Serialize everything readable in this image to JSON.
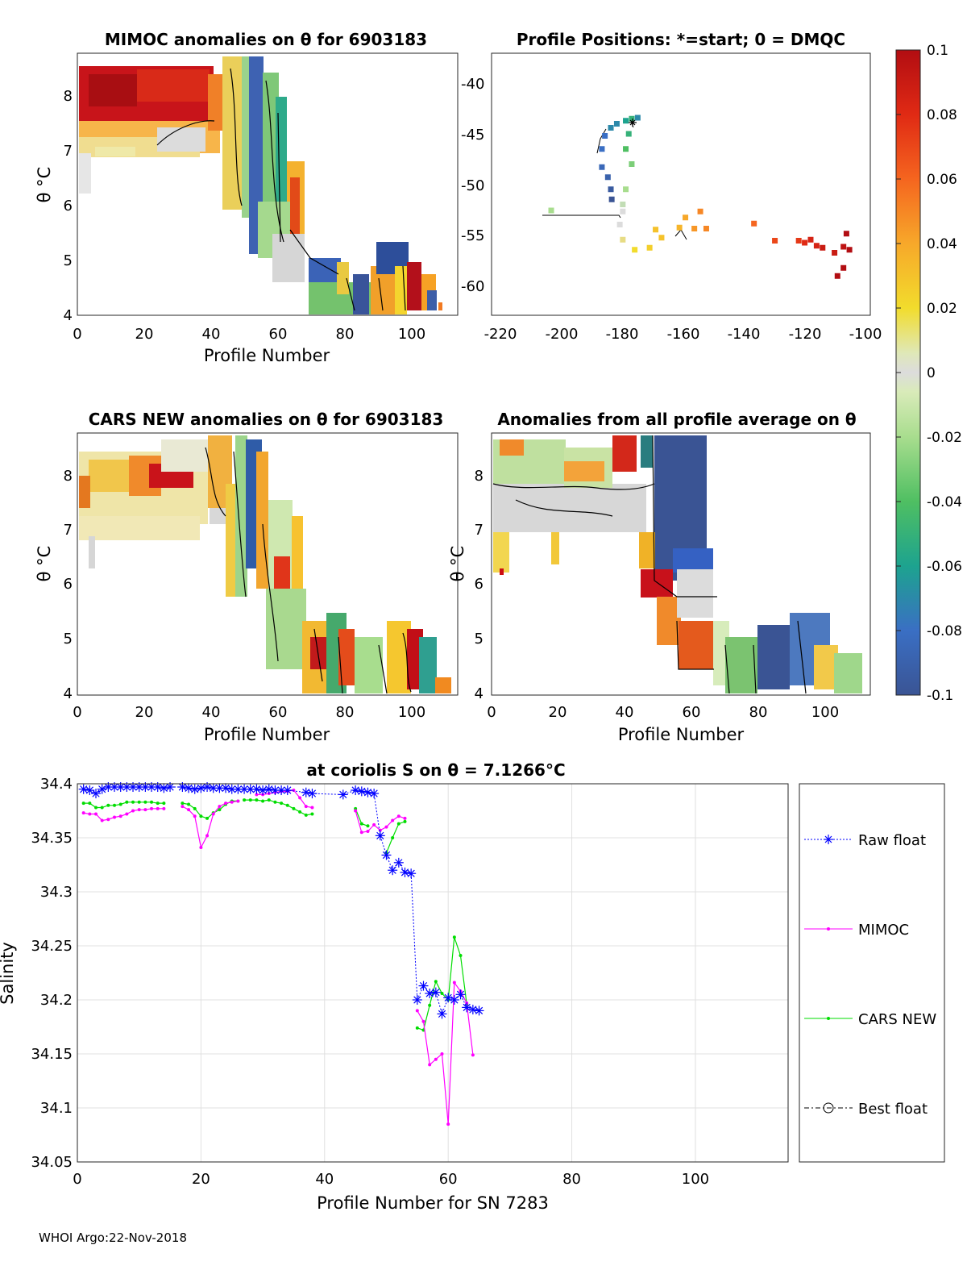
{
  "footer": "WHOI Argo:22-Nov-2018",
  "colors": {
    "raw": "#0000ff",
    "mimoc": "#ff00ff",
    "cars": "#00dd00",
    "best": "#000000"
  },
  "colorbar": {
    "ticks": [
      "0.1",
      "0.08",
      "0.06",
      "0.04",
      "0.02",
      "0",
      "-0.02",
      "-0.04",
      "-0.06",
      "-0.08",
      "-0.1"
    ],
    "range": [
      -0.1,
      0.1
    ]
  },
  "chart_data": [
    {
      "type": "heatmap",
      "title": "MIMOC anomalies on θ  for 6903183",
      "xlabel": "Profile Number",
      "ylabel": "θ °C",
      "xlim": [
        0,
        113
      ],
      "ylim": [
        4,
        8.8
      ],
      "xticks": [
        0,
        20,
        40,
        60,
        80,
        100
      ],
      "yticks": [
        4,
        5,
        6,
        7,
        8
      ]
    },
    {
      "type": "scatter",
      "title": "Profile Positions: *=start; 0 = DMQC",
      "xlim": [
        -225,
        -98
      ],
      "ylim": [
        -63.5,
        -37.5
      ],
      "xticks": [
        -220,
        -200,
        -180,
        -160,
        -140,
        -120,
        -100
      ],
      "yticks": [
        -40,
        -45,
        -50,
        -55,
        -60
      ],
      "points": [
        {
          "lon": -176,
          "lat": -43.9,
          "v": -0.07
        },
        {
          "lon": -178,
          "lat": -44.0,
          "v": -0.05
        },
        {
          "lon": -180,
          "lat": -44.2,
          "v": -0.06
        },
        {
          "lon": -183,
          "lat": -44.5,
          "v": -0.07
        },
        {
          "lon": -185,
          "lat": -44.9,
          "v": -0.07
        },
        {
          "lon": -187,
          "lat": -45.7,
          "v": -0.08
        },
        {
          "lon": -188,
          "lat": -47.0,
          "v": -0.08
        },
        {
          "lon": -188,
          "lat": -48.8,
          "v": -0.085
        },
        {
          "lon": -186,
          "lat": -49.8,
          "v": -0.09
        },
        {
          "lon": -185,
          "lat": -51.0,
          "v": -0.095
        },
        {
          "lon": -184.7,
          "lat": -52.0,
          "v": -0.1
        },
        {
          "lon": -179,
          "lat": -45.5,
          "v": -0.05
        },
        {
          "lon": -180,
          "lat": -47.0,
          "v": -0.04
        },
        {
          "lon": -178,
          "lat": -48.5,
          "v": -0.03
        },
        {
          "lon": -180,
          "lat": -51.0,
          "v": -0.02
        },
        {
          "lon": -181,
          "lat": -52.5,
          "v": -0.01
        },
        {
          "lon": -181,
          "lat": -53.2,
          "v": 0.0
        },
        {
          "lon": -205,
          "lat": -53.1,
          "v": -0.02
        },
        {
          "lon": -182,
          "lat": -54.5,
          "v": 0.0
        },
        {
          "lon": -181,
          "lat": -56.0,
          "v": 0.01
        },
        {
          "lon": -177,
          "lat": -57.0,
          "v": 0.02
        },
        {
          "lon": -172,
          "lat": -56.8,
          "v": 0.025
        },
        {
          "lon": -170,
          "lat": -55.0,
          "v": 0.03
        },
        {
          "lon": -168,
          "lat": -55.8,
          "v": 0.03
        },
        {
          "lon": -162,
          "lat": -54.8,
          "v": 0.035
        },
        {
          "lon": -160,
          "lat": -53.8,
          "v": 0.04
        },
        {
          "lon": -157,
          "lat": -54.9,
          "v": 0.045
        },
        {
          "lon": -155,
          "lat": -53.2,
          "v": 0.05
        },
        {
          "lon": -153,
          "lat": -54.9,
          "v": 0.05
        },
        {
          "lon": -137,
          "lat": -54.4,
          "v": 0.06
        },
        {
          "lon": -130,
          "lat": -56.1,
          "v": 0.07
        },
        {
          "lon": -122,
          "lat": -56.1,
          "v": 0.075
        },
        {
          "lon": -120,
          "lat": -56.3,
          "v": 0.08
        },
        {
          "lon": -118,
          "lat": -56.0,
          "v": 0.085
        },
        {
          "lon": -116,
          "lat": -56.6,
          "v": 0.085
        },
        {
          "lon": -114,
          "lat": -56.8,
          "v": 0.09
        },
        {
          "lon": -110,
          "lat": -57.3,
          "v": 0.09
        },
        {
          "lon": -107,
          "lat": -56.7,
          "v": 0.095
        },
        {
          "lon": -105,
          "lat": -57.0,
          "v": 0.1
        },
        {
          "lon": -106,
          "lat": -55.4,
          "v": 0.1
        },
        {
          "lon": -107,
          "lat": -58.8,
          "v": 0.1
        },
        {
          "lon": -109,
          "lat": -59.6,
          "v": 0.1
        }
      ]
    },
    {
      "type": "heatmap",
      "title": "CARS NEW anomalies on θ for 6903183",
      "xlabel": "Profile Number",
      "ylabel": "θ °C",
      "xlim": [
        0,
        113
      ],
      "ylim": [
        4,
        8.8
      ],
      "xticks": [
        0,
        20,
        40,
        60,
        80,
        100
      ],
      "yticks": [
        4,
        5,
        6,
        7,
        8
      ]
    },
    {
      "type": "heatmap",
      "title": "Anomalies from all profile average on θ",
      "xlabel": "Profile Number",
      "ylabel": "θ °C",
      "xlim": [
        0,
        113
      ],
      "ylim": [
        4,
        8.8
      ],
      "xticks": [
        0,
        20,
        40,
        60,
        80,
        100
      ],
      "yticks": [
        4,
        5,
        6,
        7,
        8
      ]
    },
    {
      "type": "line",
      "title": "at coriolis S on θ = 7.1266°C",
      "xlabel": "Profile Number for SN 7283",
      "ylabel": "Salinity",
      "xlim": [
        0,
        115
      ],
      "ylim": [
        34.05,
        34.4
      ],
      "xticks": [
        0,
        20,
        40,
        60,
        80,
        100
      ],
      "yticks": [
        34.05,
        34.1,
        34.15,
        34.2,
        34.25,
        34.3,
        34.35,
        34.4
      ],
      "ytick_labels": [
        "34.05",
        "34.1",
        "34.15",
        "34.2",
        "34.25",
        "34.3",
        "34.35",
        "34.4"
      ],
      "legend": [
        "Raw float",
        "MIMOC",
        "CARS NEW",
        "Best float"
      ],
      "series": [
        {
          "name": "Raw float",
          "x": [
            1,
            2,
            3,
            4,
            5,
            6,
            7,
            8,
            9,
            10,
            11,
            12,
            13,
            14,
            15,
            17,
            18,
            19,
            20,
            21,
            22,
            23,
            24,
            25,
            26,
            27,
            28,
            29,
            30,
            31,
            32,
            33,
            34,
            37,
            38,
            43,
            45,
            46,
            47,
            48,
            49,
            50,
            51,
            52,
            53,
            54,
            55,
            56,
            57,
            58,
            59,
            60,
            61,
            62,
            63,
            64,
            65
          ],
          "y": [
            34.395,
            34.394,
            34.391,
            34.395,
            34.397,
            34.397,
            34.397,
            34.397,
            34.397,
            34.397,
            34.397,
            34.397,
            34.397,
            34.396,
            34.397,
            34.397,
            34.396,
            34.395,
            34.396,
            34.397,
            34.396,
            34.396,
            34.396,
            34.395,
            34.395,
            34.395,
            34.395,
            34.395,
            34.394,
            34.395,
            34.394,
            34.394,
            34.394,
            34.392,
            34.391,
            34.39,
            34.394,
            34.393,
            34.392,
            34.391,
            34.352,
            34.334,
            34.32,
            34.327,
            34.318,
            34.317,
            34.2,
            34.213,
            34.206,
            34.207,
            34.187,
            34.202,
            34.2,
            34.205,
            34.193,
            34.191,
            34.19
          ]
        },
        {
          "name": "MIMOC",
          "segments": [
            {
              "x": [
                1,
                2,
                3,
                4,
                5,
                6,
                7,
                8,
                9,
                10,
                11,
                12,
                13,
                14
              ],
              "y": [
                34.373,
                34.372,
                34.372,
                34.366,
                34.367,
                34.369,
                34.37,
                34.372,
                34.375,
                34.376,
                34.376,
                34.377,
                34.377,
                34.377
              ]
            },
            {
              "x": [
                17,
                18,
                19,
                20,
                21,
                22,
                23,
                24,
                25,
                26
              ],
              "y": [
                34.379,
                34.376,
                34.37,
                34.341,
                34.352,
                34.372,
                34.379,
                34.382,
                34.383,
                34.384
              ]
            },
            {
              "x": [
                29,
                30,
                31,
                32,
                33,
                34,
                35,
                36,
                37,
                38
              ],
              "y": [
                34.39,
                34.39,
                34.391,
                34.392,
                34.393,
                34.393,
                34.394,
                34.387,
                34.379,
                34.378
              ]
            },
            {
              "x": [
                45,
                46,
                47,
                48,
                49,
                50,
                51,
                52,
                53
              ],
              "y": [
                34.375,
                34.355,
                34.356,
                34.362,
                34.357,
                34.36,
                34.366,
                34.37,
                34.368
              ]
            },
            {
              "x": [
                55,
                56,
                57,
                58,
                59,
                60,
                61,
                62,
                63,
                64
              ],
              "y": [
                34.19,
                34.18,
                34.14,
                34.145,
                34.15,
                34.085,
                34.216,
                34.208,
                34.197,
                34.149
              ]
            }
          ]
        },
        {
          "name": "CARS NEW",
          "segments": [
            {
              "x": [
                1,
                2,
                3,
                4,
                5,
                6,
                7,
                8,
                9,
                10,
                11,
                12,
                13,
                14
              ],
              "y": [
                34.382,
                34.382,
                34.378,
                34.378,
                34.38,
                34.38,
                34.381,
                34.383,
                34.383,
                34.383,
                34.383,
                34.383,
                34.382,
                34.382
              ]
            },
            {
              "x": [
                17,
                18,
                19,
                20,
                21,
                22,
                23,
                24,
                25,
                26
              ],
              "y": [
                34.382,
                34.381,
                34.377,
                34.37,
                34.368,
                34.373,
                34.376,
                34.381,
                34.384,
                34.384
              ]
            },
            {
              "x": [
                27,
                28,
                29,
                30,
                31,
                32,
                33,
                34,
                35,
                36,
                37,
                38
              ],
              "y": [
                34.385,
                34.385,
                34.385,
                34.384,
                34.385,
                34.383,
                34.382,
                34.38,
                34.377,
                34.374,
                34.371,
                34.372
              ]
            },
            {
              "x": [
                45,
                46,
                47
              ],
              "y": [
                34.377,
                34.363,
                34.361
              ]
            },
            {
              "x": [
                50,
                51,
                52,
                53
              ],
              "y": [
                34.336,
                34.35,
                34.363,
                34.365
              ]
            },
            {
              "x": [
                55,
                56,
                57,
                58,
                59,
                60,
                61,
                62,
                63
              ],
              "y": [
                34.174,
                34.172,
                34.195,
                34.217,
                34.206,
                34.2,
                34.258,
                34.241,
                34.196
              ]
            }
          ]
        },
        {
          "name": "Best float",
          "x": [],
          "y": []
        }
      ]
    }
  ]
}
